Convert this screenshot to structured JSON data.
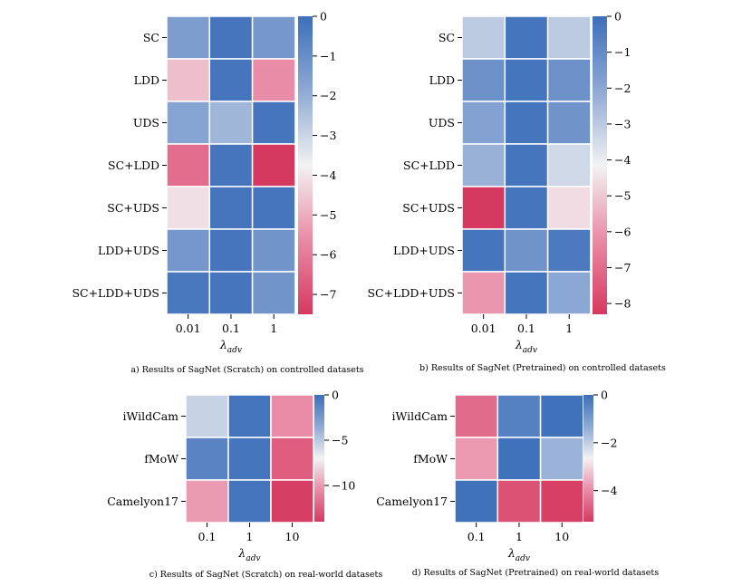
{
  "chart_data": [
    {
      "type": "heatmap",
      "caption": "a) Results of SagNet (Scratch) on controlled datasets",
      "xlabel": "λ",
      "xlabel_sub": "adv",
      "x": [
        "0.01",
        "0.1",
        "1"
      ],
      "y": [
        "SC",
        "LDD",
        "UDS",
        "SC+LDD",
        "SC+UDS",
        "LDD+UDS",
        "SC+LDD+UDS"
      ],
      "values": [
        [
          -1.5,
          -0.2,
          -1.3
        ],
        [
          -4.7,
          -0.2,
          -5.6
        ],
        [
          -1.7,
          -2.2,
          -0.2
        ],
        [
          -6.3,
          -0.2,
          -7.5
        ],
        [
          -4.1,
          -0.2,
          -0.2
        ],
        [
          -1.3,
          -0.2,
          -1.2
        ],
        [
          -0.3,
          -0.2,
          -1.2
        ]
      ],
      "vmin": -7.5,
      "vmax": 0,
      "colorbar_ticks": [
        0,
        -1,
        -2,
        -3,
        -4,
        -5,
        -6,
        -7
      ],
      "colorbar_labels": [
        "0",
        "−1",
        "−2",
        "−3",
        "−4",
        "−5",
        "−6",
        "−7"
      ]
    },
    {
      "type": "heatmap",
      "caption": "b) Results of SagNet (Pretrained) on controlled datasets",
      "xlabel": "λ",
      "xlabel_sub": "adv",
      "x": [
        "0.01",
        "0.1",
        "1"
      ],
      "y": [
        "SC",
        "LDD",
        "UDS",
        "SC+LDD",
        "SC+UDS",
        "LDD+UDS",
        "SC+LDD+UDS"
      ],
      "values": [
        [
          -3.0,
          -0.2,
          -3.0
        ],
        [
          -1.2,
          -0.2,
          -1.2
        ],
        [
          -1.8,
          -0.2,
          -1.3
        ],
        [
          -2.3,
          -0.2,
          -3.4
        ],
        [
          -8.3,
          -0.2,
          -4.6
        ],
        [
          -0.2,
          -1.3,
          -0.4
        ],
        [
          -6.0,
          -0.2,
          -2.0
        ]
      ],
      "vmin": -8.3,
      "vmax": 0,
      "colorbar_ticks": [
        0,
        -1,
        -2,
        -3,
        -4,
        -5,
        -6,
        -7,
        -8
      ],
      "colorbar_labels": [
        "0",
        "−1",
        "−2",
        "−3",
        "−4",
        "−5",
        "−6",
        "−7",
        "−8"
      ]
    },
    {
      "type": "heatmap",
      "caption": "c) Results of SagNet (Scratch) on real-world datasets",
      "xlabel": "λ",
      "xlabel_sub": "adv",
      "x": [
        "0.1",
        "1",
        "10"
      ],
      "y": [
        "iWildCam",
        "fMoW",
        "Camelyon17"
      ],
      "values": [
        [
          -5.5,
          -0.3,
          -10.5
        ],
        [
          -1.2,
          -0.3,
          -12.5
        ],
        [
          -10.0,
          -0.3,
          -13.8
        ]
      ],
      "vmin": -14,
      "vmax": 0,
      "colorbar_ticks": [
        0,
        -5,
        -10
      ],
      "colorbar_labels": [
        "0",
        "−5",
        "−10"
      ]
    },
    {
      "type": "heatmap",
      "caption": "d) Results of SagNet (Pretrained) on real-world datasets",
      "xlabel": "λ",
      "xlabel_sub": "adv",
      "x": [
        "0.1",
        "1",
        "10"
      ],
      "y": [
        "iWildCam",
        "fMoW",
        "Camelyon17"
      ],
      "values": [
        [
          -4.5,
          -0.4,
          -0.05
        ],
        [
          -3.8,
          -0.05,
          -1.5
        ],
        [
          -0.05,
          -4.9,
          -5.2
        ]
      ],
      "vmin": -5.3,
      "vmax": 0,
      "colorbar_ticks": [
        0,
        -2,
        -4
      ],
      "colorbar_labels": [
        "0",
        "−2",
        "−4"
      ]
    }
  ]
}
